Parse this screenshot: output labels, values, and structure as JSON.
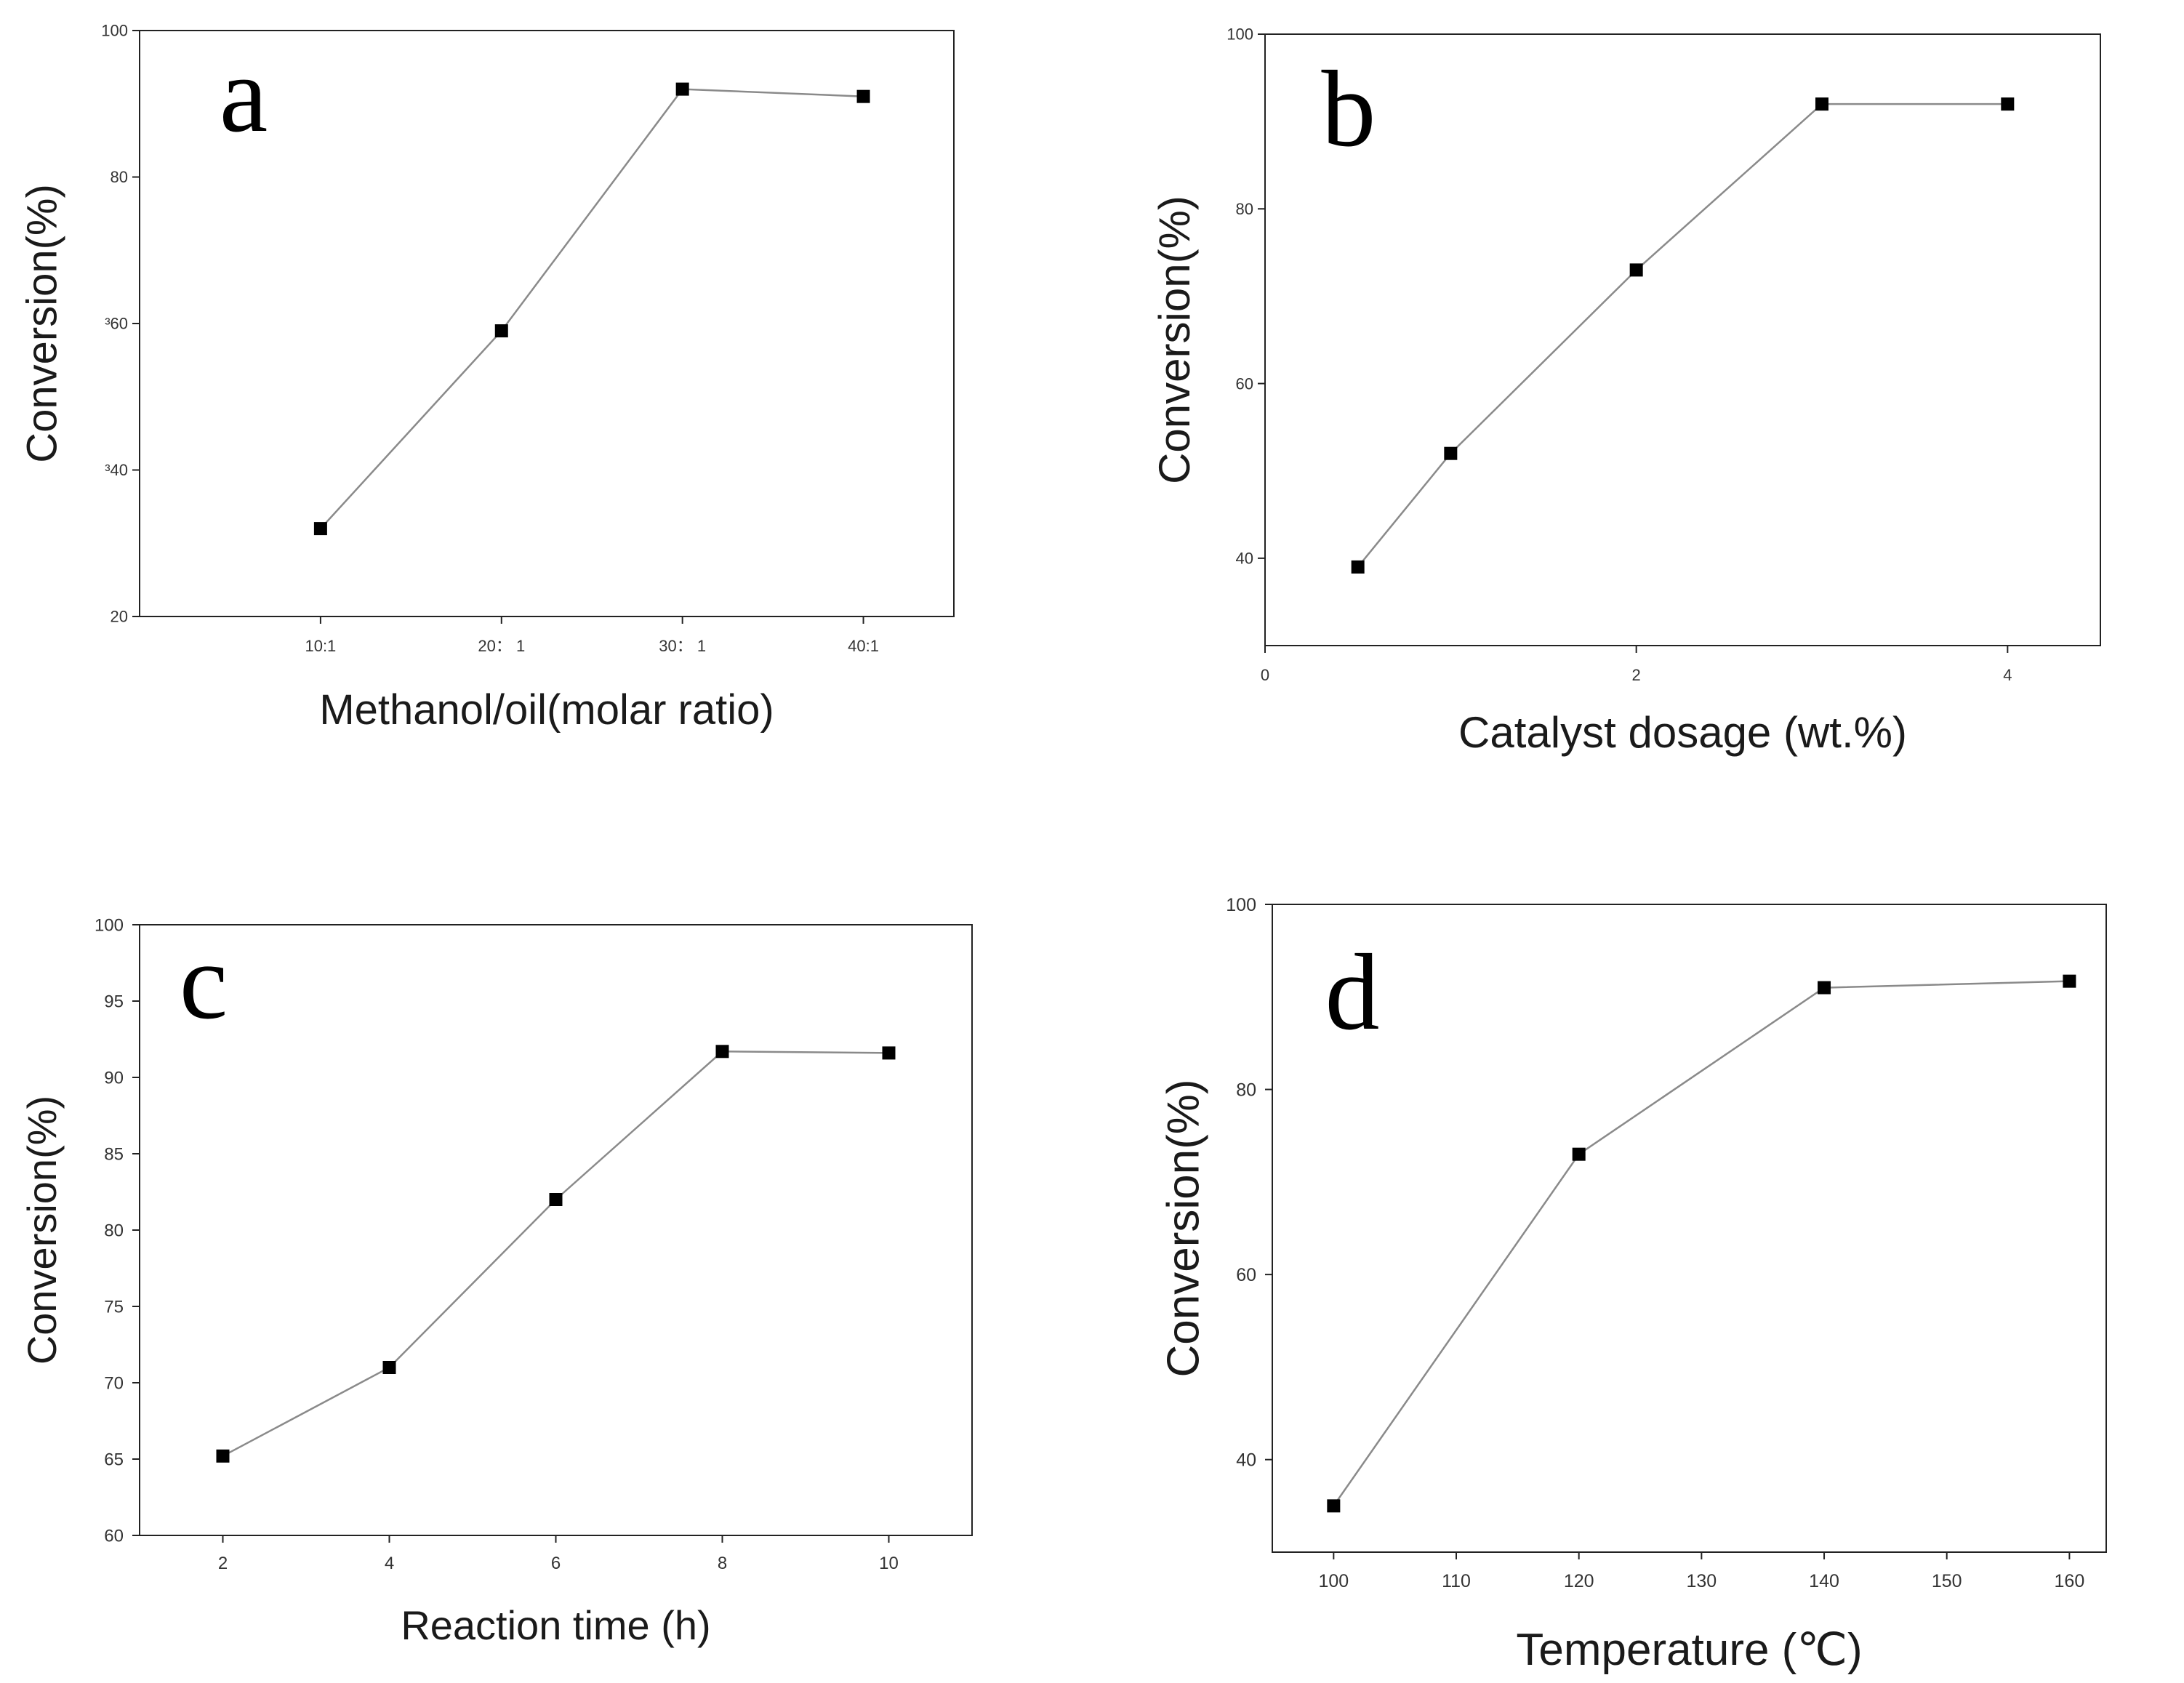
{
  "chart_data": [
    {
      "id": "a",
      "type": "line",
      "panel_label": "a",
      "xlabel": "Methanol/oil(molar ratio)",
      "ylabel": "Conversion(%)",
      "categories": [
        "10:1",
        "20： 1",
        "30： 1",
        "40:1"
      ],
      "x": [
        1,
        2,
        3,
        4
      ],
      "values": [
        32,
        59,
        92,
        91
      ],
      "xlim": [
        0.0,
        4.5
      ],
      "ylim": [
        20,
        100
      ],
      "yticks": [
        20,
        40,
        60,
        80,
        100
      ],
      "ytick_labels": [
        "20",
        "³40",
        "³60",
        "80",
        "100"
      ],
      "marker": "square",
      "line_color": "#8a8a8a"
    },
    {
      "id": "b",
      "type": "line",
      "panel_label": "b",
      "xlabel": "Catalyst dosage (wt.%)",
      "ylabel": "Conversion(%)",
      "x": [
        0.5,
        1,
        2,
        3,
        4
      ],
      "values": [
        39,
        52,
        73,
        92,
        92
      ],
      "xlim": [
        0,
        4.5
      ],
      "xticks": [
        0,
        2,
        4
      ],
      "xtick_labels": [
        "0",
        "2",
        "4"
      ],
      "ylim": [
        30,
        100
      ],
      "yticks": [
        40,
        60,
        80,
        100
      ],
      "ytick_labels": [
        "40",
        "60",
        "80",
        "100"
      ],
      "marker": "square",
      "line_color": "#8a8a8a"
    },
    {
      "id": "c",
      "type": "line",
      "panel_label": "c",
      "xlabel": "Reaction time (h)",
      "ylabel": "Conversion(%)",
      "x": [
        2,
        4,
        6,
        8,
        10
      ],
      "values": [
        65.2,
        71,
        82,
        91.7,
        91.6
      ],
      "xlim": [
        1,
        11
      ],
      "xticks": [
        2,
        4,
        6,
        8,
        10
      ],
      "xtick_labels": [
        "2",
        "4",
        "6",
        "8",
        "10"
      ],
      "ylim": [
        60,
        100
      ],
      "yticks": [
        60,
        65,
        70,
        75,
        80,
        85,
        90,
        95,
        100
      ],
      "ytick_labels": [
        "60",
        "65",
        "70",
        "75",
        "80",
        "85",
        "90",
        "95",
        "100"
      ],
      "marker": "square",
      "line_color": "#8a8a8a"
    },
    {
      "id": "d",
      "type": "line",
      "panel_label": "d",
      "xlabel": "Temperature (℃)",
      "ylabel": "Conversion(%)",
      "x": [
        100,
        120,
        140,
        160
      ],
      "values": [
        35,
        73,
        91,
        91.7
      ],
      "xlim": [
        95,
        163
      ],
      "xticks": [
        100,
        110,
        120,
        130,
        140,
        150,
        160
      ],
      "xtick_labels": [
        "100",
        "110",
        "120",
        "130",
        "140",
        "150",
        "160"
      ],
      "ylim": [
        30,
        100
      ],
      "yticks": [
        40,
        60,
        80,
        100
      ],
      "ytick_labels": [
        "40",
        "60",
        "80",
        "100"
      ],
      "marker": "square",
      "line_color": "#8a8a8a"
    }
  ]
}
